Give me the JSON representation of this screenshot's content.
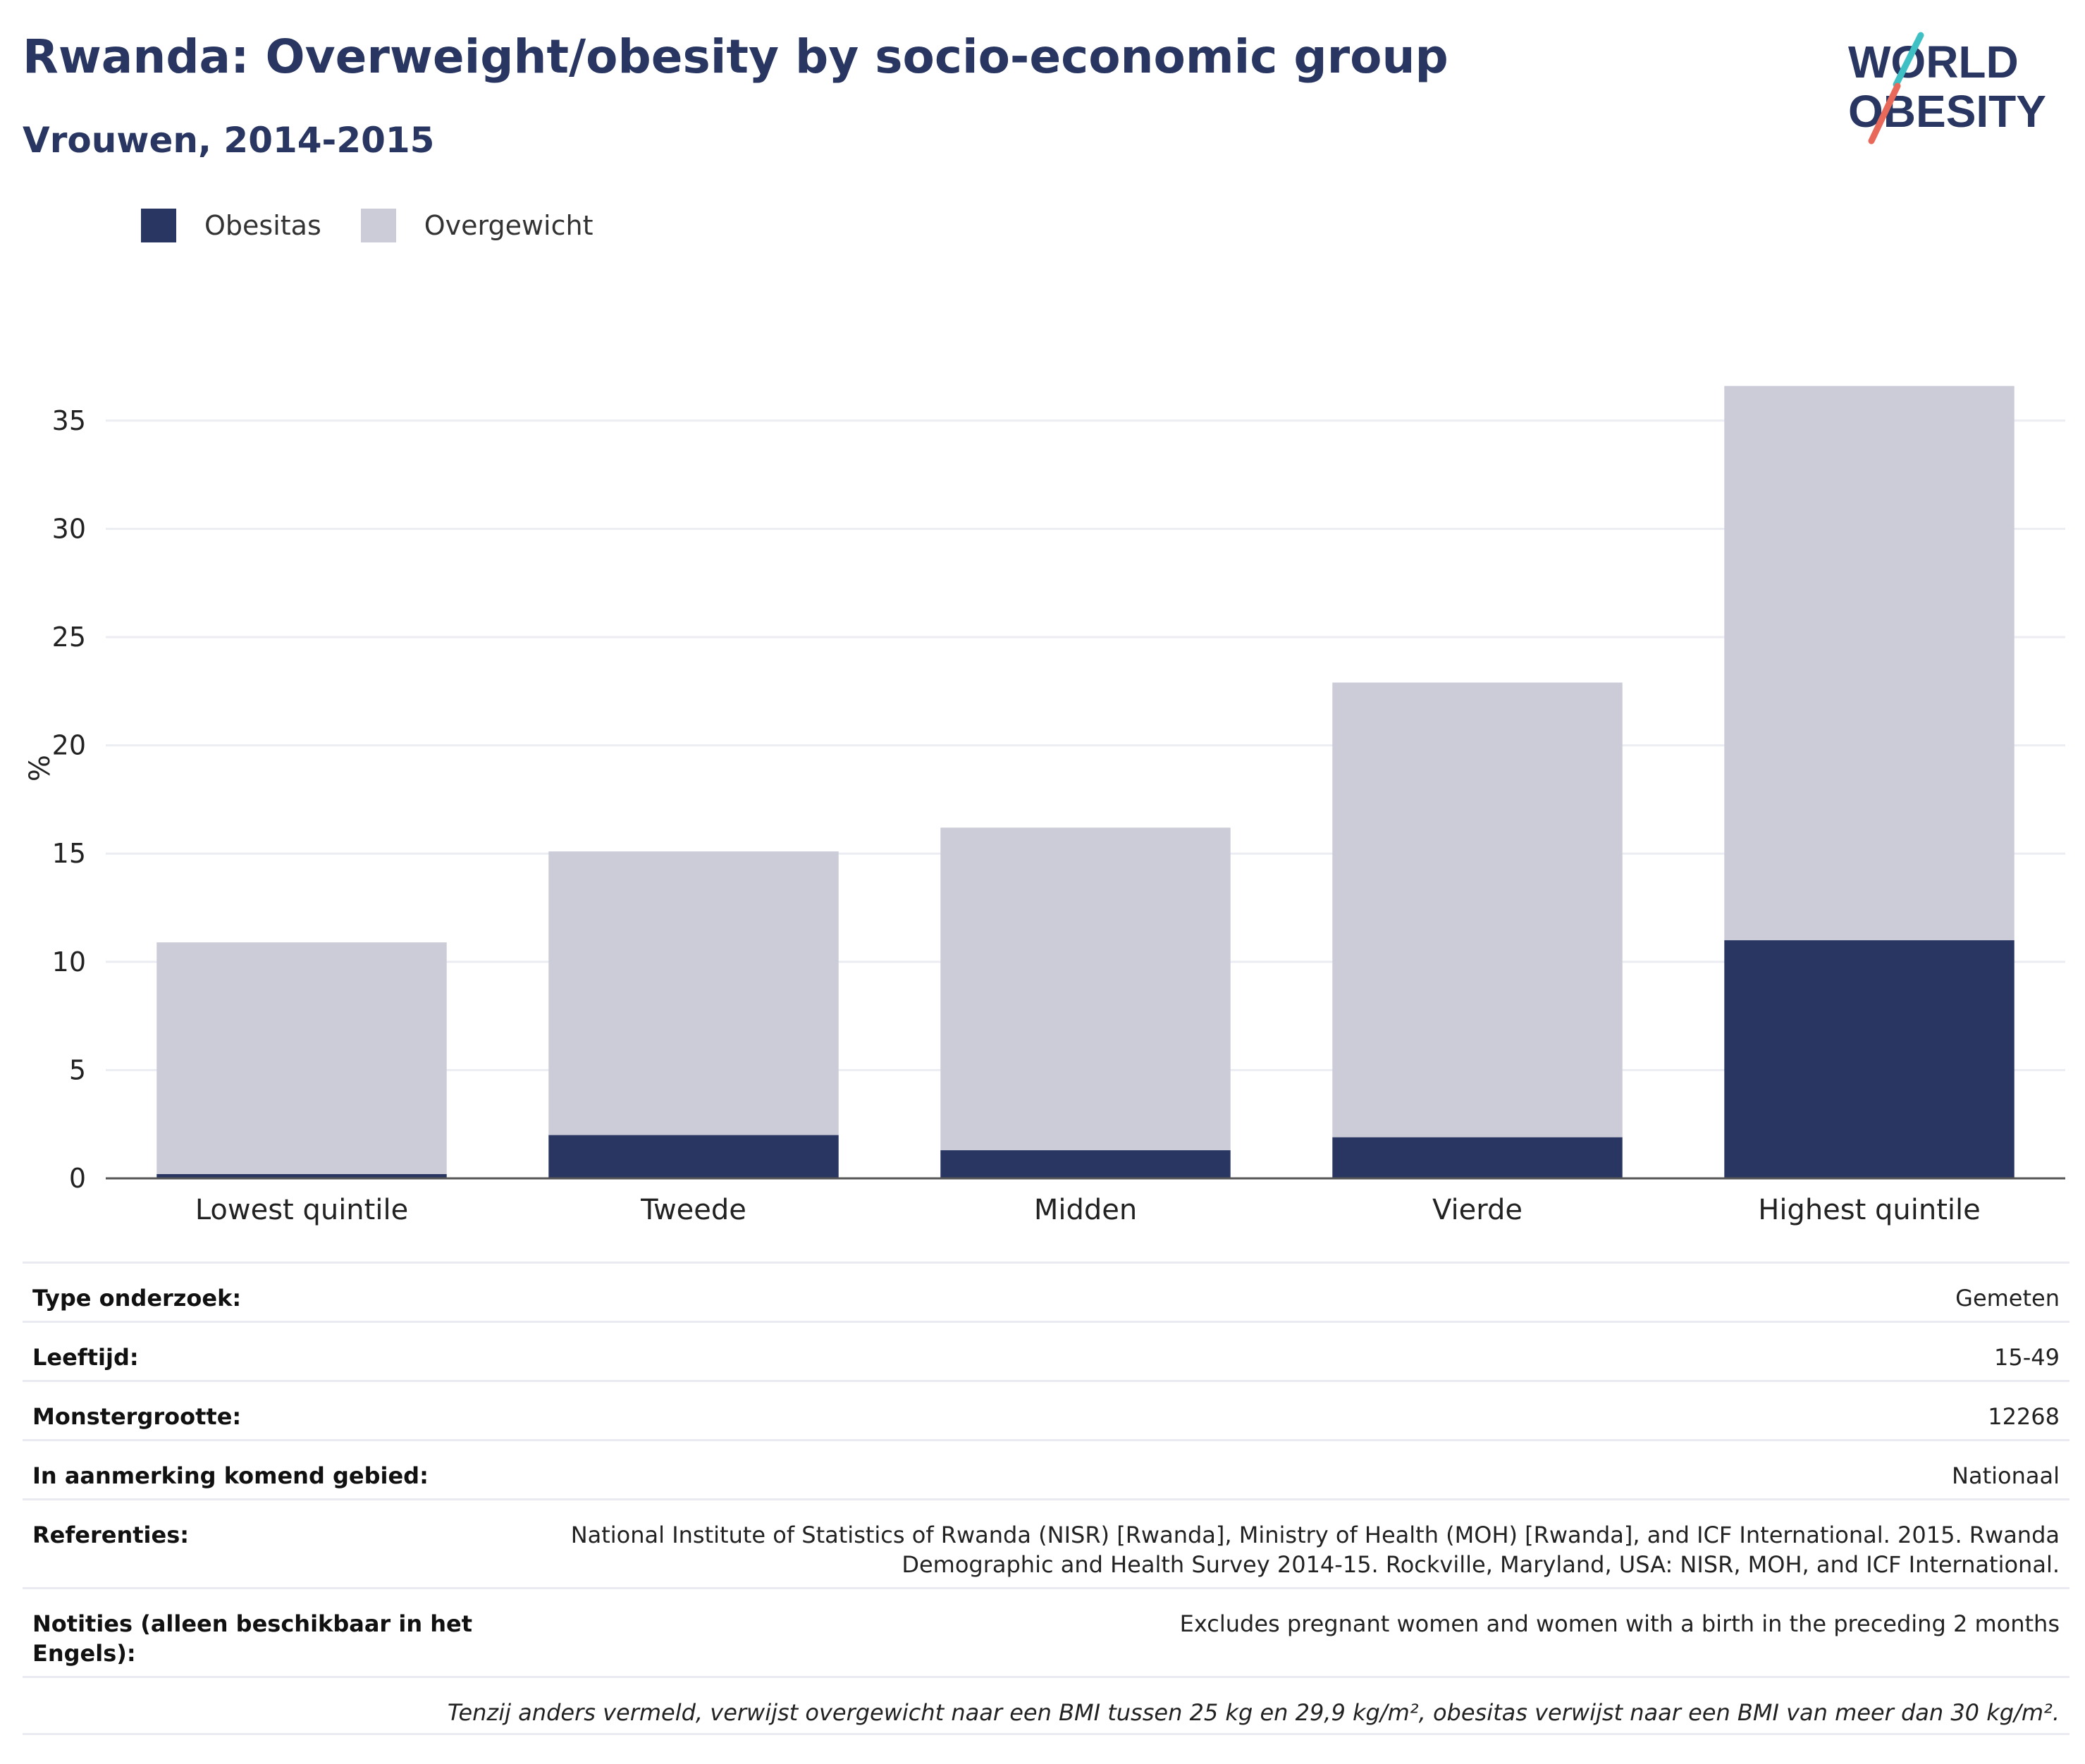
{
  "header": {
    "title": "Rwanda: Overweight/obesity by socio-economic group",
    "subtitle": "Vrouwen, 2014-2015"
  },
  "logo": {
    "line1": "WORLD",
    "line2": "OBESITY"
  },
  "colors": {
    "title": "#283661",
    "obesitas": "#283661",
    "overgewicht": "#cbccd8",
    "logo_teal": "#3fc0c4",
    "logo_red": "#e8685a",
    "grid": "#ecedf3",
    "axis": "#555555"
  },
  "chart_data": {
    "type": "bar",
    "stacked": true,
    "categories": [
      "Lowest quintile",
      "Tweede",
      "Midden",
      "Vierde",
      "Highest quintile"
    ],
    "series": [
      {
        "name": "Obesitas",
        "values": [
          0.2,
          2.0,
          1.3,
          1.9,
          11.0
        ],
        "color": "#283661"
      },
      {
        "name": "Overgewicht",
        "values": [
          10.7,
          13.1,
          14.9,
          21.0,
          25.6
        ],
        "color": "#cbccd8"
      }
    ],
    "ylabel": "%",
    "ylim": [
      0,
      37.5
    ],
    "yticks": [
      0,
      5,
      10,
      15,
      20,
      25,
      30,
      35
    ],
    "grid": true,
    "legend_position": "top-left"
  },
  "meta": {
    "rows": [
      {
        "label": "Type onderzoek:",
        "value": "Gemeten"
      },
      {
        "label": "Leeftijd:",
        "value": "15-49"
      },
      {
        "label": "Monstergrootte:",
        "value": "12268"
      },
      {
        "label": "In aanmerking komend gebied:",
        "value": "Nationaal"
      },
      {
        "label": "Referenties:",
        "value": "National Institute of Statistics of Rwanda (NISR) [Rwanda], Ministry of Health (MOH) [Rwanda], and ICF International. 2015. Rwanda Demographic and Health Survey 2014-15. Rockville, Maryland, USA: NISR, MOH, and ICF International."
      },
      {
        "label": "Notities (alleen beschikbaar in het Engels):",
        "value": "Excludes pregnant women and women with a birth in the preceding 2 months"
      }
    ],
    "footnote": "Tenzij anders vermeld, verwijst overgewicht naar een BMI tussen 25 kg en 29,9 kg/m², obesitas verwijst naar een BMI van meer dan 30 kg/m²."
  }
}
